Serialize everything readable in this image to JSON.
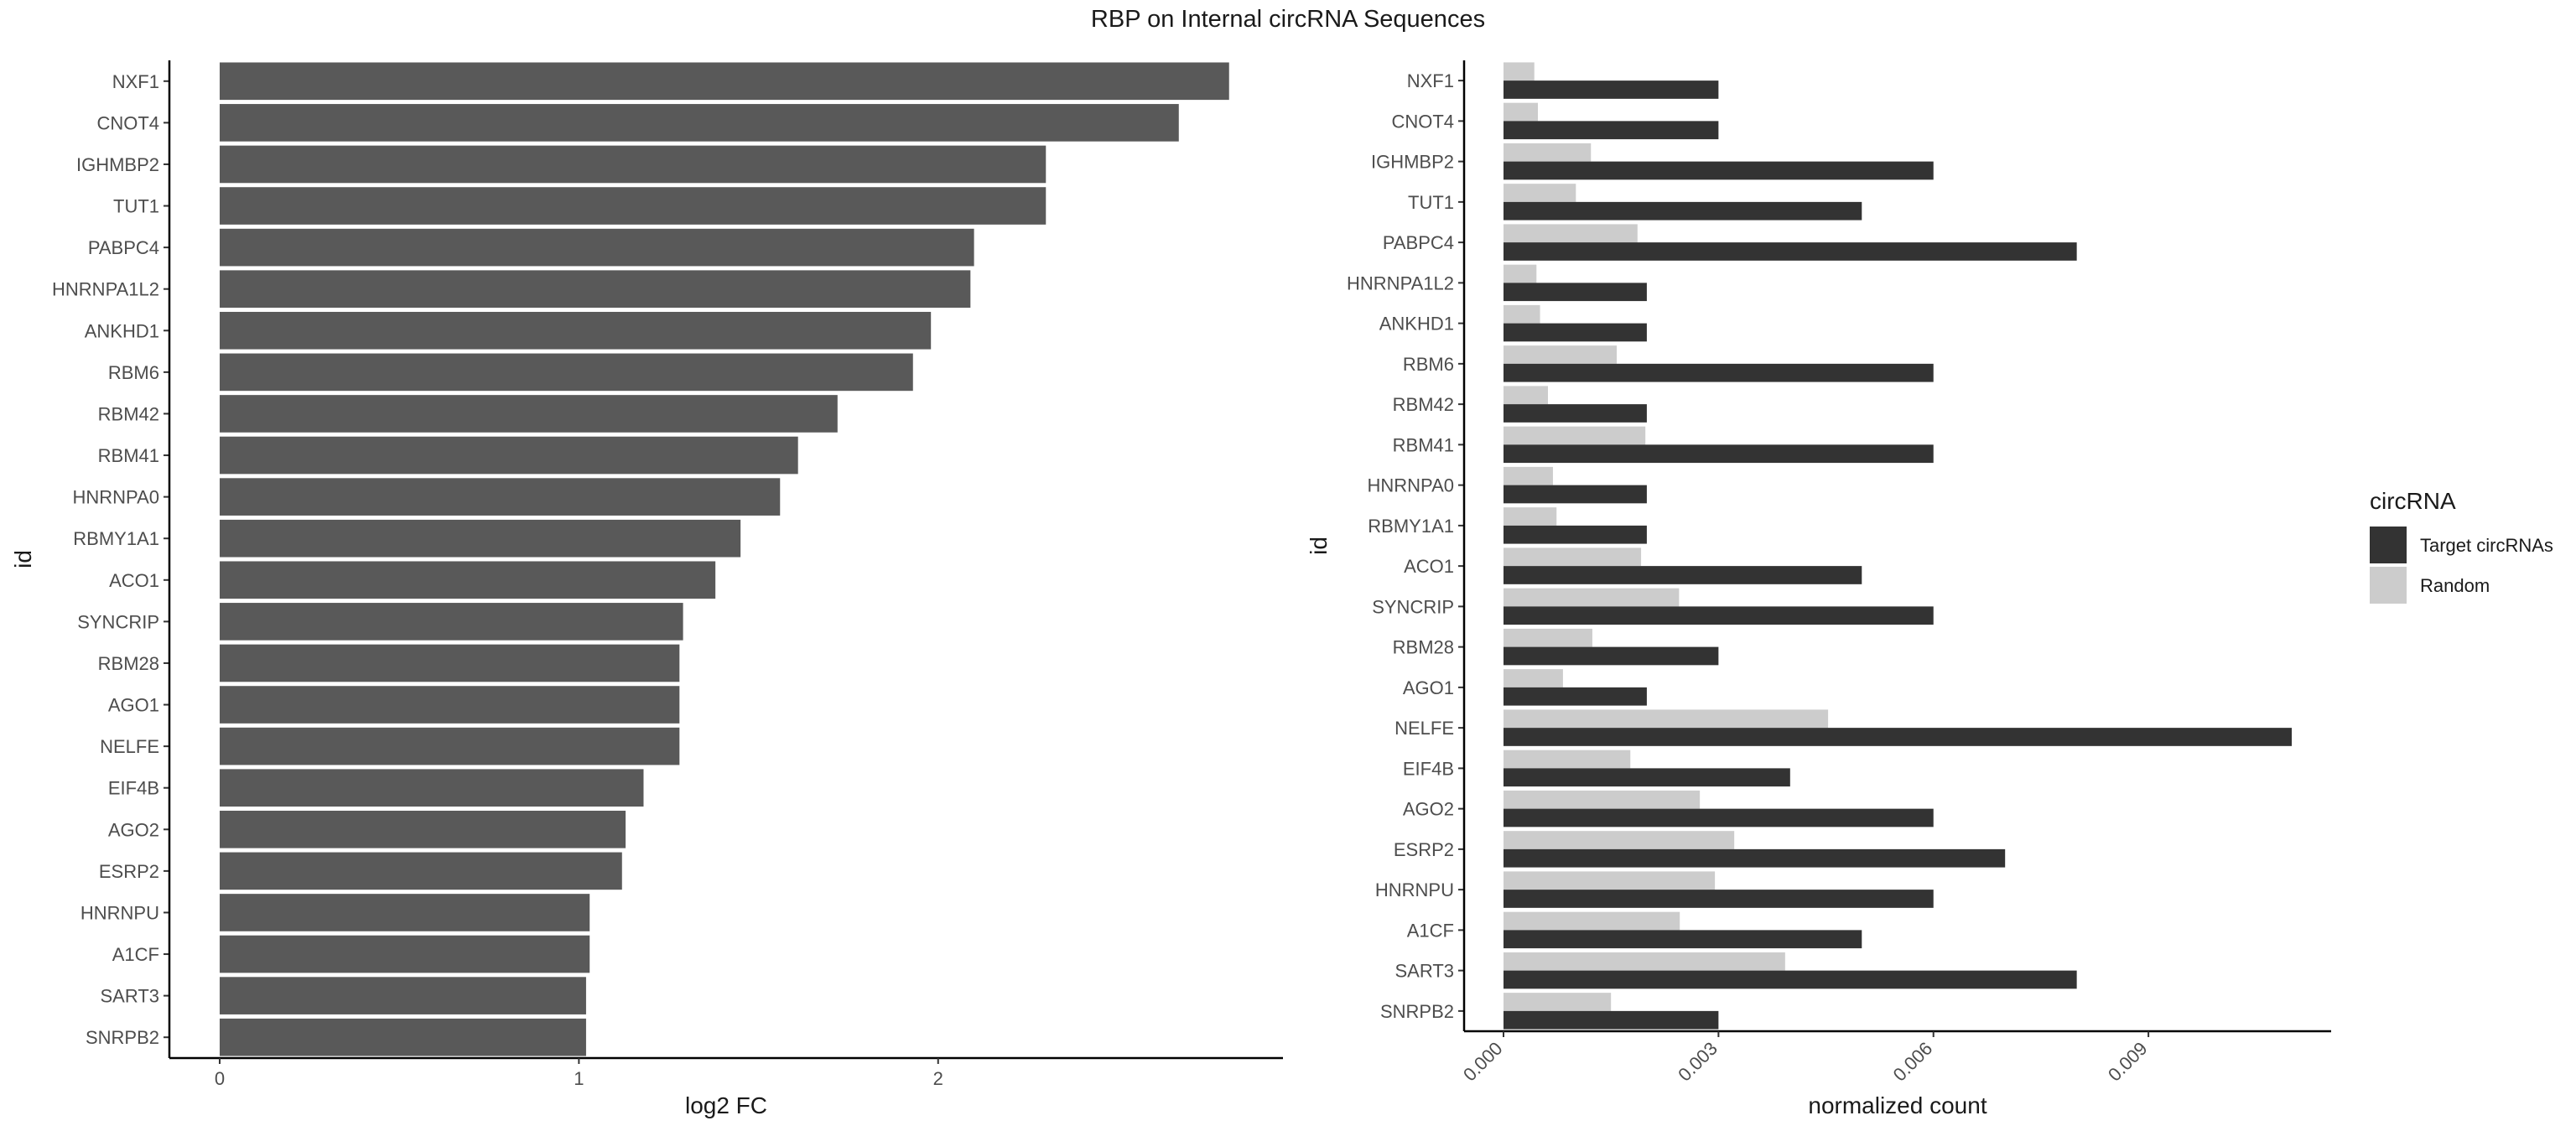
{
  "title": "RBP on Internal circRNA Sequences",
  "chart_data": [
    {
      "type": "bar",
      "orientation": "horizontal",
      "categories": [
        "NXF1",
        "CNOT4",
        "IGHMBP2",
        "TUT1",
        "PABPC4",
        "HNRNPA1L2",
        "ANKHD1",
        "RBM6",
        "RBM42",
        "RBM41",
        "HNRNPA0",
        "RBMY1A1",
        "ACO1",
        "SYNCRIP",
        "RBM28",
        "AGO1",
        "NELFE",
        "EIF4B",
        "AGO2",
        "ESRP2",
        "HNRNPU",
        "A1CF",
        "SART3",
        "SNRPB2"
      ],
      "values": [
        2.81,
        2.67,
        2.3,
        2.3,
        2.1,
        2.09,
        1.98,
        1.93,
        1.72,
        1.61,
        1.56,
        1.45,
        1.38,
        1.29,
        1.28,
        1.28,
        1.28,
        1.18,
        1.13,
        1.12,
        1.03,
        1.03,
        1.02,
        1.02
      ],
      "xlabel": "log2 FC",
      "ylabel": "id",
      "xticks": [
        "0",
        "1",
        "2"
      ],
      "xlim": [
        -0.14,
        2.96
      ],
      "bar_color": "#595959",
      "grid": false
    },
    {
      "type": "bar",
      "orientation": "horizontal",
      "categories": [
        "NXF1",
        "CNOT4",
        "IGHMBP2",
        "TUT1",
        "PABPC4",
        "HNRNPA1L2",
        "ANKHD1",
        "RBM6",
        "RBM42",
        "RBM41",
        "HNRNPA0",
        "RBMY1A1",
        "ACO1",
        "SYNCRIP",
        "RBM28",
        "AGO1",
        "NELFE",
        "EIF4B",
        "AGO2",
        "ESRP2",
        "HNRNPU",
        "A1CF",
        "SART3",
        "SNRPB2"
      ],
      "series": [
        {
          "name": "Target circRNAs",
          "color": "#333333",
          "values": [
            0.003,
            0.003,
            0.006,
            0.005,
            0.008,
            0.002,
            0.002,
            0.006,
            0.002,
            0.006,
            0.002,
            0.002,
            0.005,
            0.006,
            0.003,
            0.002,
            0.011,
            0.004,
            0.006,
            0.007,
            0.006,
            0.005,
            0.008,
            0.003
          ]
        },
        {
          "name": "Random",
          "color": "#cccccc",
          "values": [
            0.00043,
            0.00048,
            0.00122,
            0.00101,
            0.00187,
            0.00046,
            0.00051,
            0.00158,
            0.00062,
            0.00198,
            0.00069,
            0.00074,
            0.00192,
            0.00245,
            0.00124,
            0.00083,
            0.00453,
            0.00177,
            0.00274,
            0.00322,
            0.00295,
            0.00246,
            0.00393,
            0.0015
          ]
        }
      ],
      "xlabel": "normalized count",
      "ylabel": "id",
      "xticks": [
        "0.000",
        "0.003",
        "0.006",
        "0.009"
      ],
      "xlim": [
        -0.00055,
        0.01155
      ],
      "grid": false,
      "legend": {
        "title": "circRNA",
        "placement": "right"
      }
    }
  ]
}
